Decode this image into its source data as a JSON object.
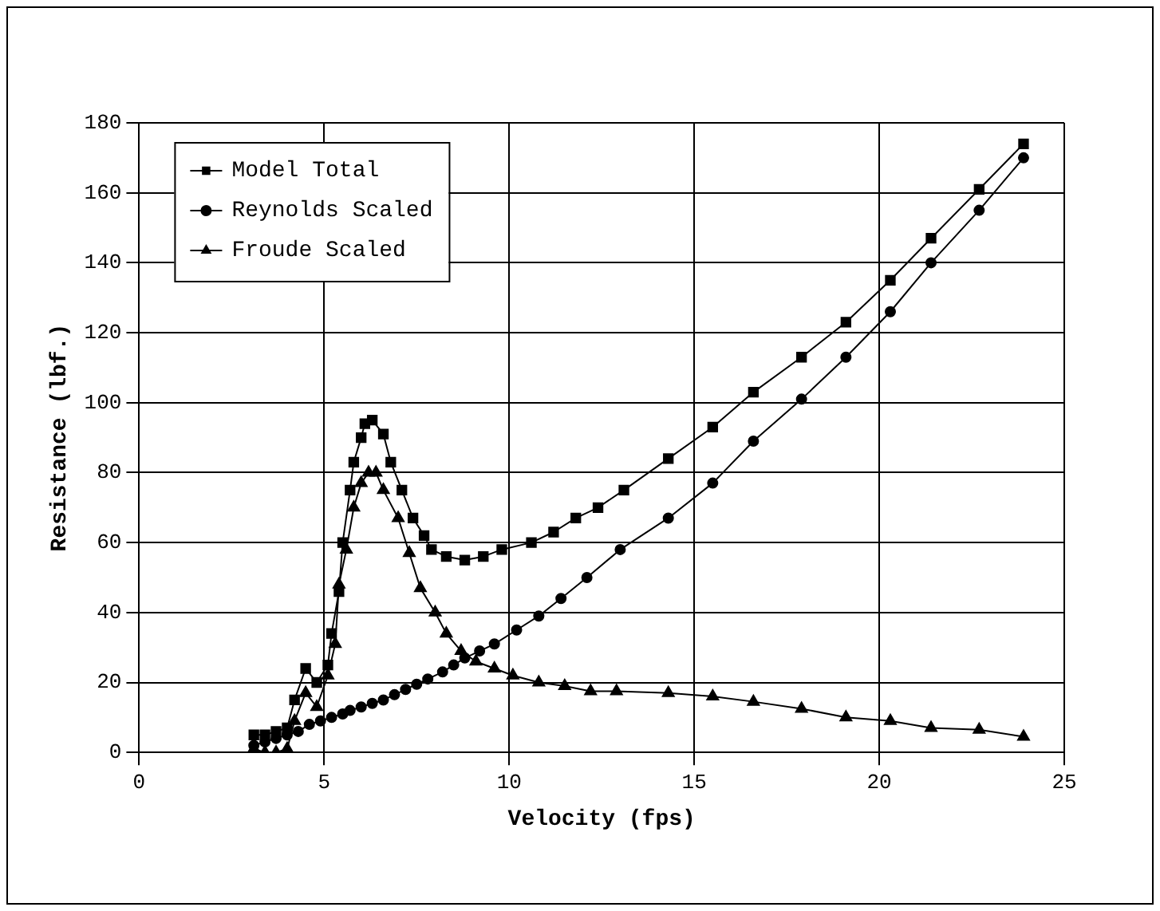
{
  "chart_data": {
    "type": "line",
    "xlabel": "Velocity (fps)",
    "ylabel": "Resistance (lbf.)",
    "xlim": [
      0,
      25
    ],
    "xticks": [
      0,
      5,
      10,
      15,
      20,
      25
    ],
    "ylim": [
      0,
      180
    ],
    "yticks": [
      0,
      20,
      40,
      60,
      80,
      100,
      120,
      140,
      160,
      180
    ],
    "grid": true,
    "legend": "top left",
    "line_style": "solid",
    "series": [
      {
        "name": "Model Total",
        "color": "#000000",
        "marker": "square",
        "x": [
          3.1,
          3.4,
          3.7,
          4.0,
          4.2,
          4.5,
          4.8,
          5.1,
          5.2,
          5.4,
          5.5,
          5.7,
          5.8,
          6.0,
          6.1,
          6.3,
          6.6,
          6.8,
          7.1,
          7.4,
          7.7,
          7.9,
          8.3,
          8.8,
          9.3,
          9.8,
          10.6,
          11.2,
          11.8,
          12.4,
          13.1,
          14.3,
          15.5,
          16.6,
          17.9,
          19.1,
          20.3,
          21.4,
          22.7,
          23.9
        ],
        "values": [
          5,
          5,
          6,
          7,
          15,
          24,
          20,
          25,
          34,
          46,
          60,
          75,
          83,
          90,
          94,
          95,
          91,
          83,
          75,
          67,
          62,
          58,
          56,
          55,
          56,
          58,
          60,
          63,
          67,
          70,
          75,
          84,
          93,
          103,
          113,
          123,
          135,
          147,
          161,
          174
        ]
      },
      {
        "name": "Reynolds Scaled",
        "color": "#000000",
        "marker": "circle",
        "x": [
          3.1,
          3.4,
          3.7,
          4.0,
          4.3,
          4.6,
          4.9,
          5.2,
          5.5,
          5.7,
          6.0,
          6.3,
          6.6,
          6.9,
          7.2,
          7.5,
          7.8,
          8.2,
          8.5,
          8.8,
          9.2,
          9.6,
          10.2,
          10.8,
          11.4,
          12.1,
          13.0,
          14.3,
          15.5,
          16.6,
          17.9,
          19.1,
          20.3,
          21.4,
          22.7,
          23.9
        ],
        "values": [
          2,
          3,
          4,
          5,
          6,
          8,
          9,
          10,
          11,
          12,
          13,
          14,
          15,
          16.5,
          18,
          19.5,
          21,
          23,
          25,
          27,
          29,
          31,
          35,
          39,
          44,
          50,
          58,
          67,
          77,
          89,
          101,
          113,
          126,
          140,
          155,
          170
        ]
      },
      {
        "name": "Froude Scaled",
        "color": "#000000",
        "marker": "triangle",
        "x": [
          3.1,
          3.4,
          3.7,
          4.0,
          4.2,
          4.5,
          4.8,
          5.1,
          5.3,
          5.4,
          5.6,
          5.8,
          6.0,
          6.2,
          6.4,
          6.6,
          7.0,
          7.3,
          7.6,
          8.0,
          8.3,
          8.7,
          9.1,
          9.6,
          10.1,
          10.8,
          11.5,
          12.2,
          12.9,
          14.3,
          15.5,
          16.6,
          17.9,
          19.1,
          20.3,
          21.4,
          22.7,
          23.9
        ],
        "values": [
          1,
          0,
          0,
          1,
          9,
          17,
          13,
          22,
          31,
          48,
          58,
          70,
          77,
          80,
          80,
          75,
          67,
          57,
          47,
          40,
          34,
          29,
          26,
          24,
          22,
          20,
          19,
          17.5,
          17.5,
          17,
          16,
          14.5,
          12.5,
          10,
          9,
          7,
          6.5,
          4.5
        ]
      }
    ]
  }
}
